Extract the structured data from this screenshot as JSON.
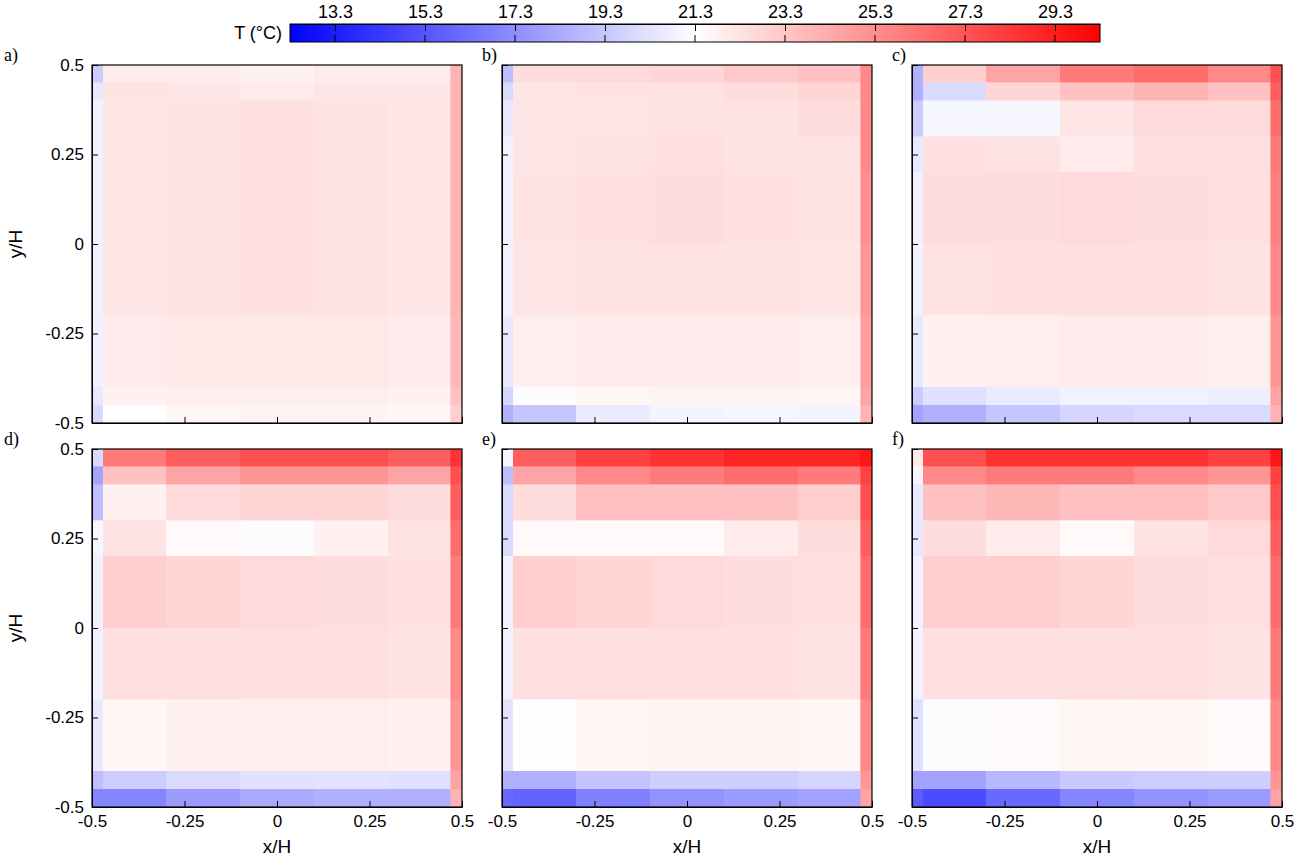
{
  "chart_data": [
    {
      "type": "heatmap",
      "label": "a)",
      "ylabel": "y/H",
      "tick_labels": "y",
      "xlim": [
        -0.5,
        0.5
      ],
      "ylim": [
        -0.5,
        0.5
      ],
      "xticks": [
        -0.5,
        -0.25,
        0,
        0.25,
        0.5
      ],
      "yticks": [
        -0.5,
        -0.25,
        0,
        0.25,
        0.5
      ],
      "colorbar": {
        "label": "T (°C)",
        "range": [
          12.3,
          30.3
        ],
        "ticks": [
          13.3,
          15.3,
          17.3,
          19.3,
          21.3,
          23.3,
          25.3,
          27.3,
          29.3
        ]
      },
      "x_edges": [
        -0.5,
        -0.47,
        -0.3,
        -0.1,
        0.1,
        0.3,
        0.47,
        0.5
      ],
      "y_edges": [
        0.5,
        0.45,
        0.4,
        0.3,
        0.2,
        0,
        -0.2,
        -0.4,
        -0.45,
        -0.5
      ],
      "values": [
        [
          19.5,
          22.0,
          22.0,
          21.8,
          22.0,
          22.0,
          24.0
        ],
        [
          20.5,
          22.3,
          22.2,
          22.0,
          22.2,
          22.2,
          24.0
        ],
        [
          20.8,
          22.2,
          22.3,
          22.4,
          22.3,
          22.2,
          24.0
        ],
        [
          20.8,
          22.2,
          22.3,
          22.4,
          22.3,
          22.2,
          24.0
        ],
        [
          20.8,
          22.2,
          22.3,
          22.4,
          22.3,
          22.2,
          24.0
        ],
        [
          20.8,
          22.2,
          22.3,
          22.4,
          22.3,
          22.2,
          24.0
        ],
        [
          20.8,
          22.0,
          22.1,
          22.1,
          22.1,
          22.0,
          23.8
        ],
        [
          20.5,
          21.8,
          21.9,
          21.9,
          21.9,
          21.8,
          23.5
        ],
        [
          20.0,
          21.3,
          21.6,
          21.7,
          21.7,
          21.6,
          23.0
        ]
      ]
    },
    {
      "type": "heatmap",
      "label": "b)",
      "tick_labels": false,
      "xlim": [
        -0.5,
        0.5
      ],
      "ylim": [
        -0.5,
        0.5
      ],
      "xticks": [
        -0.5,
        -0.25,
        0,
        0.25,
        0.5
      ],
      "yticks": [
        -0.5,
        -0.25,
        0,
        0.25,
        0.5
      ],
      "x_edges": [
        -0.5,
        -0.47,
        -0.3,
        -0.1,
        0.1,
        0.3,
        0.47,
        0.5
      ],
      "y_edges": [
        0.5,
        0.45,
        0.4,
        0.3,
        0.2,
        0,
        -0.2,
        -0.4,
        -0.45,
        -0.5
      ],
      "values": [
        [
          19.0,
          22.5,
          22.6,
          22.8,
          23.2,
          23.5,
          25.5
        ],
        [
          20.0,
          22.2,
          22.3,
          22.3,
          22.5,
          22.8,
          25.5
        ],
        [
          20.5,
          22.2,
          22.2,
          22.3,
          22.3,
          22.5,
          25.5
        ],
        [
          20.8,
          22.2,
          22.3,
          22.4,
          22.3,
          22.3,
          25.5
        ],
        [
          20.8,
          22.3,
          22.4,
          22.5,
          22.4,
          22.3,
          25.3
        ],
        [
          20.8,
          22.2,
          22.3,
          22.3,
          22.3,
          22.2,
          25.0
        ],
        [
          20.5,
          21.9,
          22.0,
          22.0,
          22.0,
          21.9,
          24.8
        ],
        [
          19.8,
          21.2,
          21.6,
          21.7,
          21.7,
          21.6,
          24.5
        ],
        [
          18.5,
          19.3,
          20.6,
          20.9,
          21.0,
          20.9,
          24.0
        ]
      ]
    },
    {
      "type": "heatmap",
      "label": "c)",
      "tick_labels": false,
      "xlim": [
        -0.5,
        0.5
      ],
      "ylim": [
        -0.5,
        0.5
      ],
      "xticks": [
        -0.5,
        -0.25,
        0,
        0.25,
        0.5
      ],
      "yticks": [
        -0.5,
        -0.25,
        0,
        0.25,
        0.5
      ],
      "x_edges": [
        -0.5,
        -0.47,
        -0.3,
        -0.1,
        0.1,
        0.3,
        0.47,
        0.5
      ],
      "y_edges": [
        0.5,
        0.45,
        0.4,
        0.3,
        0.2,
        0,
        -0.2,
        -0.4,
        -0.45,
        -0.5
      ],
      "values": [
        [
          18.5,
          23.0,
          24.5,
          26.0,
          26.5,
          25.5,
          27.5
        ],
        [
          18.5,
          20.0,
          22.8,
          23.5,
          24.0,
          23.5,
          27.0
        ],
        [
          19.5,
          21.0,
          21.0,
          22.2,
          22.6,
          22.6,
          26.5
        ],
        [
          20.5,
          22.4,
          22.3,
          22.0,
          22.4,
          22.4,
          26.0
        ],
        [
          20.8,
          22.5,
          22.5,
          22.6,
          22.5,
          22.4,
          25.8
        ],
        [
          20.8,
          22.3,
          22.4,
          22.4,
          22.4,
          22.3,
          25.5
        ],
        [
          20.5,
          21.8,
          21.9,
          22.0,
          22.0,
          21.9,
          25.0
        ],
        [
          19.5,
          20.2,
          20.6,
          20.8,
          20.8,
          20.7,
          24.5
        ],
        [
          18.0,
          18.5,
          19.3,
          19.8,
          20.0,
          20.0,
          24.0
        ]
      ]
    },
    {
      "type": "heatmap",
      "label": "d)",
      "xlabel": "x/H",
      "ylabel": "y/H",
      "tick_labels": true,
      "xlim": [
        -0.5,
        0.5
      ],
      "ylim": [
        -0.5,
        0.5
      ],
      "xticks": [
        -0.5,
        -0.25,
        0,
        0.25,
        0.5
      ],
      "yticks": [
        -0.5,
        -0.25,
        0,
        0.25,
        0.5
      ],
      "x_edges": [
        -0.5,
        -0.47,
        -0.3,
        -0.1,
        0.1,
        0.3,
        0.47,
        0.5
      ],
      "y_edges": [
        0.5,
        0.45,
        0.4,
        0.3,
        0.2,
        0,
        -0.2,
        -0.4,
        -0.45,
        -0.5
      ],
      "values": [
        [
          20.0,
          26.0,
          27.0,
          27.5,
          27.5,
          27.0,
          28.5
        ],
        [
          18.0,
          23.5,
          24.5,
          25.0,
          25.0,
          24.5,
          27.5
        ],
        [
          19.0,
          21.8,
          22.6,
          22.8,
          22.8,
          22.5,
          27.0
        ],
        [
          21.0,
          22.3,
          21.5,
          21.2,
          21.8,
          22.3,
          26.5
        ],
        [
          20.8,
          23.0,
          22.8,
          22.6,
          22.5,
          22.4,
          26.0
        ],
        [
          20.8,
          22.4,
          22.4,
          22.4,
          22.4,
          22.3,
          25.5
        ],
        [
          20.5,
          21.6,
          21.8,
          21.9,
          21.9,
          21.8,
          25.0
        ],
        [
          19.0,
          19.5,
          20.0,
          20.2,
          20.3,
          20.2,
          24.5
        ],
        [
          17.0,
          17.0,
          17.8,
          18.3,
          18.5,
          18.5,
          24.0
        ]
      ]
    },
    {
      "type": "heatmap",
      "label": "e)",
      "xlabel": "x/H",
      "tick_labels": "x",
      "xlim": [
        -0.5,
        0.5
      ],
      "ylim": [
        -0.5,
        0.5
      ],
      "xticks": [
        -0.5,
        -0.25,
        0,
        0.25,
        0.5
      ],
      "yticks": [
        -0.5,
        -0.25,
        0,
        0.25,
        0.5
      ],
      "x_edges": [
        -0.5,
        -0.47,
        -0.3,
        -0.1,
        0.1,
        0.3,
        0.47,
        0.5
      ],
      "y_edges": [
        0.5,
        0.45,
        0.4,
        0.3,
        0.2,
        0,
        -0.2,
        -0.4,
        -0.45,
        -0.5
      ],
      "values": [
        [
          21.0,
          27.0,
          28.0,
          28.5,
          29.0,
          29.0,
          29.5
        ],
        [
          19.0,
          24.5,
          25.5,
          26.0,
          26.5,
          26.0,
          28.0
        ],
        [
          20.0,
          22.5,
          23.5,
          23.5,
          23.5,
          23.0,
          27.5
        ],
        [
          20.0,
          21.5,
          21.5,
          21.5,
          22.0,
          22.5,
          27.0
        ],
        [
          20.8,
          23.0,
          22.8,
          22.6,
          22.5,
          22.4,
          26.5
        ],
        [
          20.8,
          22.4,
          22.4,
          22.4,
          22.4,
          22.3,
          26.0
        ],
        [
          20.3,
          21.4,
          21.6,
          21.7,
          21.7,
          21.6,
          25.5
        ],
        [
          18.5,
          18.5,
          19.2,
          19.6,
          19.6,
          19.8,
          25.0
        ],
        [
          16.0,
          15.8,
          16.8,
          17.5,
          17.8,
          18.0,
          24.5
        ]
      ]
    },
    {
      "type": "heatmap",
      "label": "f)",
      "xlabel": "x/H",
      "tick_labels": "x",
      "xlim": [
        -0.5,
        0.5
      ],
      "ylim": [
        -0.5,
        0.5
      ],
      "xticks": [
        -0.5,
        -0.25,
        0,
        0.25,
        0.5
      ],
      "yticks": [
        -0.5,
        -0.25,
        0,
        0.25,
        0.5
      ],
      "x_edges": [
        -0.5,
        -0.47,
        -0.3,
        -0.1,
        0.1,
        0.3,
        0.47,
        0.5
      ],
      "y_edges": [
        0.5,
        0.45,
        0.4,
        0.3,
        0.2,
        0,
        -0.2,
        -0.4,
        -0.45,
        -0.5
      ],
      "values": [
        [
          22.0,
          27.5,
          28.5,
          28.5,
          28.5,
          28.0,
          29.5
        ],
        [
          21.0,
          25.5,
          26.0,
          26.0,
          25.5,
          25.0,
          28.0
        ],
        [
          20.5,
          23.5,
          23.8,
          23.5,
          23.5,
          23.2,
          27.5
        ],
        [
          20.5,
          22.5,
          22.0,
          21.5,
          22.3,
          22.6,
          27.0
        ],
        [
          20.8,
          23.0,
          23.0,
          22.8,
          22.5,
          22.4,
          26.5
        ],
        [
          20.8,
          22.4,
          22.4,
          22.4,
          22.4,
          22.3,
          26.0
        ],
        [
          20.2,
          21.2,
          21.5,
          21.6,
          21.6,
          21.5,
          25.5
        ],
        [
          18.0,
          18.0,
          18.8,
          19.4,
          19.5,
          19.6,
          25.0
        ],
        [
          15.5,
          15.0,
          16.0,
          17.0,
          17.5,
          17.8,
          24.5
        ]
      ]
    }
  ]
}
